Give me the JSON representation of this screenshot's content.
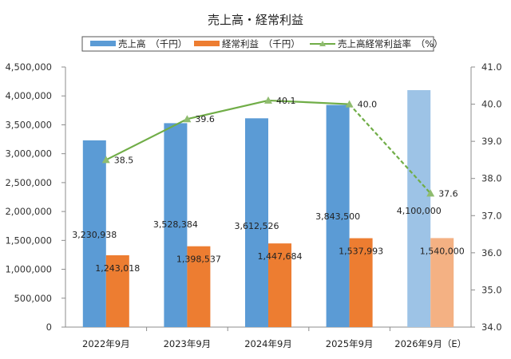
{
  "chart_data": {
    "type": "bar",
    "title": "売上高・経常利益",
    "categories": [
      "2022年9月",
      "2023年9月",
      "2024年9月",
      "2025年9月",
      "2026年9月（E）"
    ],
    "series": [
      {
        "name": "売上高　（千円）",
        "kind": "bar",
        "axis": "left",
        "color": "#5B9BD5",
        "estimate_color": "#9DC3E6",
        "values": [
          3230938,
          3528384,
          3612526,
          3843500,
          4100000
        ],
        "labels": [
          "3,230,938",
          "3,528,384",
          "3,612,526",
          "3,843,500",
          "4,100,000"
        ]
      },
      {
        "name": "経常利益　（千円）",
        "kind": "bar",
        "axis": "left",
        "color": "#ED7D31",
        "estimate_color": "#F4B183",
        "values": [
          1243018,
          1398537,
          1447684,
          1537993,
          1540000
        ],
        "labels": [
          "1,243,018",
          "1,398,537",
          "1,447,684",
          "1,537,993",
          "1,540,000"
        ]
      },
      {
        "name": "売上高経常利益率　（%）",
        "kind": "line",
        "axis": "right",
        "color": "#70AD47",
        "marker_color": "#8FBC6F",
        "values": [
          38.5,
          39.6,
          40.1,
          40.0,
          37.6
        ],
        "labels": [
          "38.5",
          "39.6",
          "40.1",
          "40.0",
          "37.6"
        ],
        "dashed_from_index": 3
      }
    ],
    "estimate_index": 4,
    "y_left": {
      "range": [
        0,
        4500000
      ],
      "ticks": [
        0,
        500000,
        1000000,
        1500000,
        2000000,
        2500000,
        3000000,
        3500000,
        4000000,
        4500000
      ],
      "tick_labels": [
        "0",
        "500,000",
        "1,000,000",
        "1,500,000",
        "2,000,000",
        "2,500,000",
        "3,000,000",
        "3,500,000",
        "4,000,000",
        "4,500,000"
      ]
    },
    "y_right": {
      "range": [
        34.0,
        41.0
      ],
      "ticks": [
        34,
        35,
        36,
        37,
        38,
        39,
        40,
        41
      ],
      "tick_labels": [
        "34.0",
        "35.0",
        "36.0",
        "37.0",
        "38.0",
        "39.0",
        "40.0",
        "41.0"
      ]
    },
    "xlabel": "",
    "ylabel": "",
    "grid": false,
    "legend_position": "top"
  }
}
